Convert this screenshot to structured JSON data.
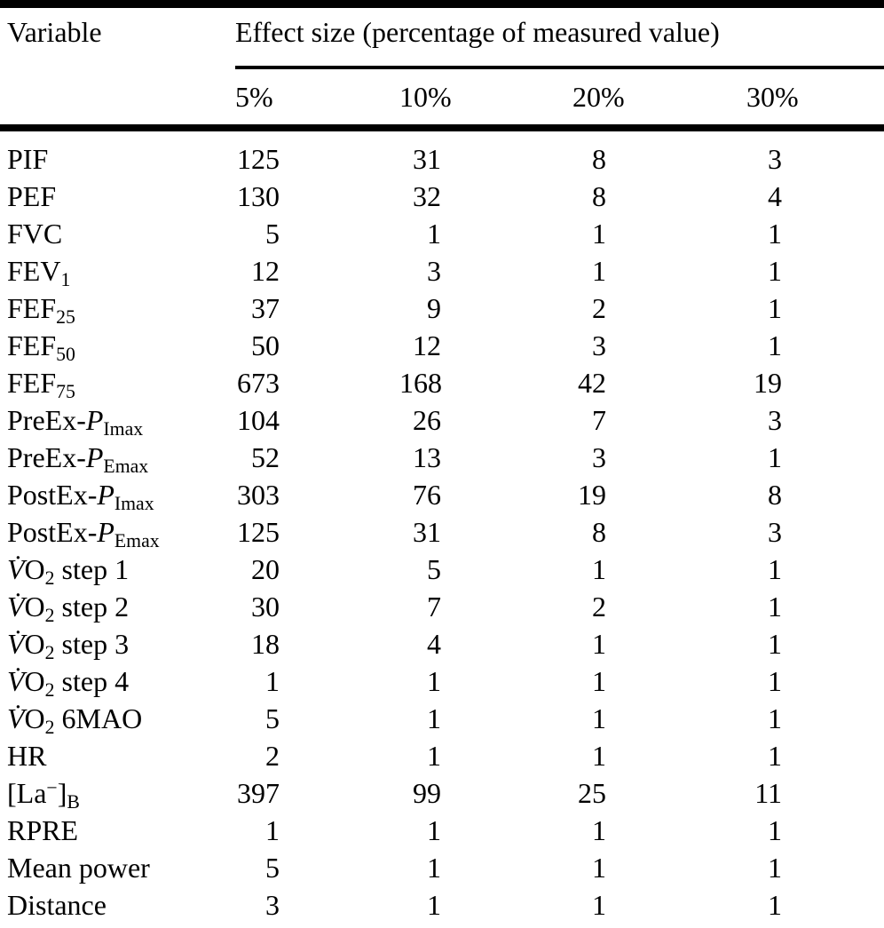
{
  "colors": {
    "text": "#000000",
    "background": "#ffffff"
  },
  "table": {
    "col1_header": "Variable",
    "span_header": "Effect size (percentage of measured value)",
    "col_headers": [
      "5%",
      "10%",
      "20%",
      "30%"
    ],
    "rows": [
      {
        "label": [
          {
            "t": "PIF"
          }
        ],
        "values": [
          "125",
          "31",
          "8",
          "3"
        ]
      },
      {
        "label": [
          {
            "t": "PEF"
          }
        ],
        "values": [
          "130",
          "32",
          "8",
          "4"
        ]
      },
      {
        "label": [
          {
            "t": "FVC"
          }
        ],
        "values": [
          "5",
          "1",
          "1",
          "1"
        ]
      },
      {
        "label": [
          {
            "t": "FEV"
          },
          {
            "t": "1",
            "s": "sub"
          }
        ],
        "values": [
          "12",
          "3",
          "1",
          "1"
        ]
      },
      {
        "label": [
          {
            "t": "FEF"
          },
          {
            "t": "25",
            "s": "sub"
          }
        ],
        "values": [
          "37",
          "9",
          "2",
          "1"
        ]
      },
      {
        "label": [
          {
            "t": "FEF"
          },
          {
            "t": "50",
            "s": "sub"
          }
        ],
        "values": [
          "50",
          "12",
          "3",
          "1"
        ]
      },
      {
        "label": [
          {
            "t": "FEF"
          },
          {
            "t": "75",
            "s": "sub"
          }
        ],
        "values": [
          "673",
          "168",
          "42",
          "19"
        ]
      },
      {
        "label": [
          {
            "t": "PreEx-"
          },
          {
            "t": "P",
            "s": "italic"
          },
          {
            "t": "Imax",
            "s": "sub"
          }
        ],
        "values": [
          "104",
          "26",
          "7",
          "3"
        ]
      },
      {
        "label": [
          {
            "t": "PreEx-"
          },
          {
            "t": "P",
            "s": "italic"
          },
          {
            "t": "Emax",
            "s": "sub"
          }
        ],
        "values": [
          "52",
          "13",
          "3",
          "1"
        ]
      },
      {
        "label": [
          {
            "t": "PostEx-"
          },
          {
            "t": "P",
            "s": "italic"
          },
          {
            "t": "Imax",
            "s": "sub"
          }
        ],
        "values": [
          "303",
          "76",
          "19",
          "8"
        ]
      },
      {
        "label": [
          {
            "t": "PostEx-"
          },
          {
            "t": "P",
            "s": "italic"
          },
          {
            "t": "Emax",
            "s": "sub"
          }
        ],
        "values": [
          "125",
          "31",
          "8",
          "3"
        ]
      },
      {
        "label": [
          {
            "t": "V̇",
            "s": "italic"
          },
          {
            "t": "O"
          },
          {
            "t": "2",
            "s": "sub"
          },
          {
            "t": " step 1"
          }
        ],
        "values": [
          "20",
          "5",
          "1",
          "1"
        ]
      },
      {
        "label": [
          {
            "t": "V̇",
            "s": "italic"
          },
          {
            "t": "O"
          },
          {
            "t": "2",
            "s": "sub"
          },
          {
            "t": " step 2"
          }
        ],
        "values": [
          "30",
          "7",
          "2",
          "1"
        ]
      },
      {
        "label": [
          {
            "t": "V̇",
            "s": "italic"
          },
          {
            "t": "O"
          },
          {
            "t": "2",
            "s": "sub"
          },
          {
            "t": " step 3"
          }
        ],
        "values": [
          "18",
          "4",
          "1",
          "1"
        ]
      },
      {
        "label": [
          {
            "t": "V̇",
            "s": "italic"
          },
          {
            "t": "O"
          },
          {
            "t": "2",
            "s": "sub"
          },
          {
            "t": " step 4"
          }
        ],
        "values": [
          "1",
          "1",
          "1",
          "1"
        ]
      },
      {
        "label": [
          {
            "t": "V̇",
            "s": "italic"
          },
          {
            "t": "O"
          },
          {
            "t": "2",
            "s": "sub"
          },
          {
            "t": " 6MAO"
          }
        ],
        "values": [
          "5",
          "1",
          "1",
          "1"
        ]
      },
      {
        "label": [
          {
            "t": "HR"
          }
        ],
        "values": [
          "2",
          "1",
          "1",
          "1"
        ]
      },
      {
        "label": [
          {
            "t": "[La"
          },
          {
            "t": "−",
            "s": "sup"
          },
          {
            "t": "]"
          },
          {
            "t": "B",
            "s": "sub"
          }
        ],
        "values": [
          "397",
          "99",
          "25",
          "11"
        ]
      },
      {
        "label": [
          {
            "t": "RPRE"
          }
        ],
        "values": [
          "1",
          "1",
          "1",
          "1"
        ]
      },
      {
        "label": [
          {
            "t": "Mean power"
          }
        ],
        "values": [
          "5",
          "1",
          "1",
          "1"
        ]
      },
      {
        "label": [
          {
            "t": "Distance"
          }
        ],
        "values": [
          "3",
          "1",
          "1",
          "1"
        ]
      }
    ]
  }
}
